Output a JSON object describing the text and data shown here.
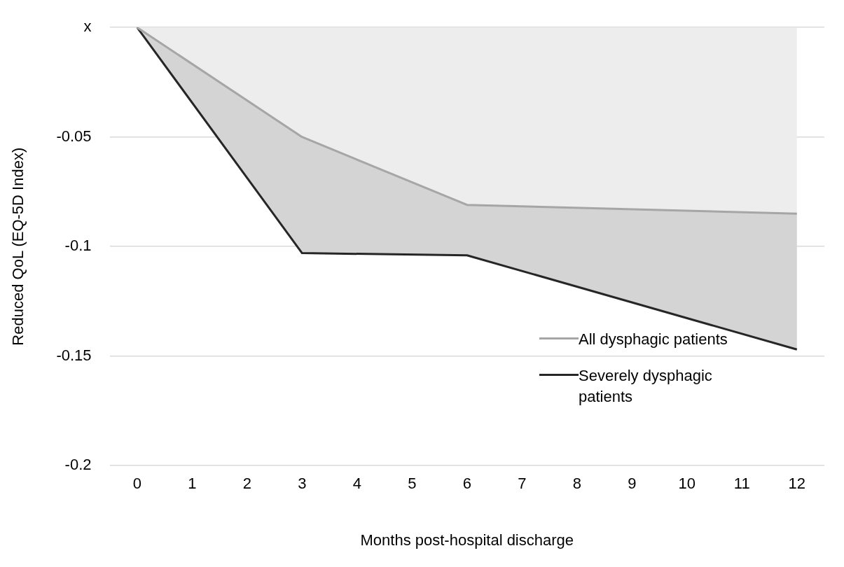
{
  "chart_data": {
    "type": "line",
    "xlabel": "Months post-hospital discharge",
    "ylabel": "Reduced QoL (EQ-5D Index)",
    "x": [
      0,
      3,
      6,
      12
    ],
    "series": [
      {
        "name": "All dysphagic patients",
        "color": "#a6a6a6",
        "values": [
          0,
          -0.05,
          -0.081,
          -0.085
        ],
        "lower": [
          0,
          -0.05,
          -0.081,
          -0.085
        ],
        "upper": [
          0,
          0,
          0,
          0
        ]
      },
      {
        "name": "Severely dysphagic patients",
        "color": "#262626",
        "values": [
          0,
          -0.103,
          -0.104,
          -0.147
        ],
        "lower": [
          0,
          -0.103,
          -0.104,
          -0.147
        ],
        "upper": [
          0,
          -0.05,
          -0.081,
          -0.085
        ]
      }
    ],
    "xlim": [
      -0.5,
      12.5
    ],
    "xticks": [
      0,
      1,
      2,
      3,
      4,
      5,
      6,
      7,
      8,
      9,
      10,
      11,
      12
    ],
    "ylim": [
      -0.2,
      0
    ],
    "yticks": [
      {
        "value": 0,
        "label": "x"
      },
      -0.05,
      -0.1,
      -0.15,
      -0.2
    ],
    "grid": "y",
    "legend": "bottom right"
  }
}
